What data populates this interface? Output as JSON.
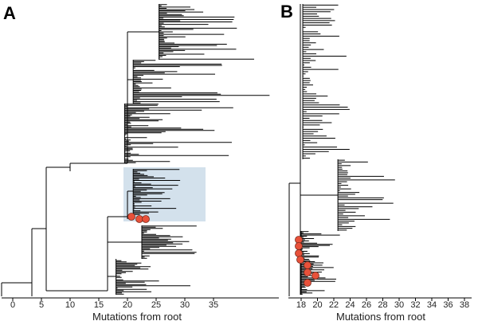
{
  "panels": [
    {
      "id": "A",
      "xlabel": "Mutations from root",
      "ticks": [
        "0",
        "5",
        "10",
        "15",
        "20",
        "25",
        "30",
        "35"
      ],
      "clades": [
        {
          "node": 25.5,
          "leaves": 45,
          "tip_max": 42
        },
        {
          "node": 21,
          "leaves": 35,
          "tip_max": 44
        },
        {
          "node": 19.5,
          "leaves": 50,
          "tip_max": 38
        },
        {
          "node": 21,
          "leaves": 38,
          "tip_max": 29,
          "highlighted": true
        },
        {
          "node": 22.5,
          "leaves": 28,
          "tip_max": 33
        },
        {
          "node": 18,
          "leaves": 30,
          "tip_max": 31
        }
      ],
      "highlighted_samples": 3
    },
    {
      "id": "B",
      "xlabel": "Mutations from root",
      "ticks": [
        "18",
        "20",
        "22",
        "24",
        "26",
        "28",
        "30",
        "32",
        "34",
        "36",
        "38"
      ],
      "clades": [
        {
          "node": 18.2,
          "leaves": 70,
          "tip_max": 24
        },
        {
          "node": 22.5,
          "leaves": 40,
          "tip_max": 29
        },
        {
          "node": 18,
          "leaves": 55,
          "tip_max": 22
        }
      ],
      "highlighted_samples": 8
    }
  ],
  "colors": {
    "tree": "#000000",
    "highlight_box": "#d3e1ec",
    "sample_marker": "#e8513a"
  }
}
